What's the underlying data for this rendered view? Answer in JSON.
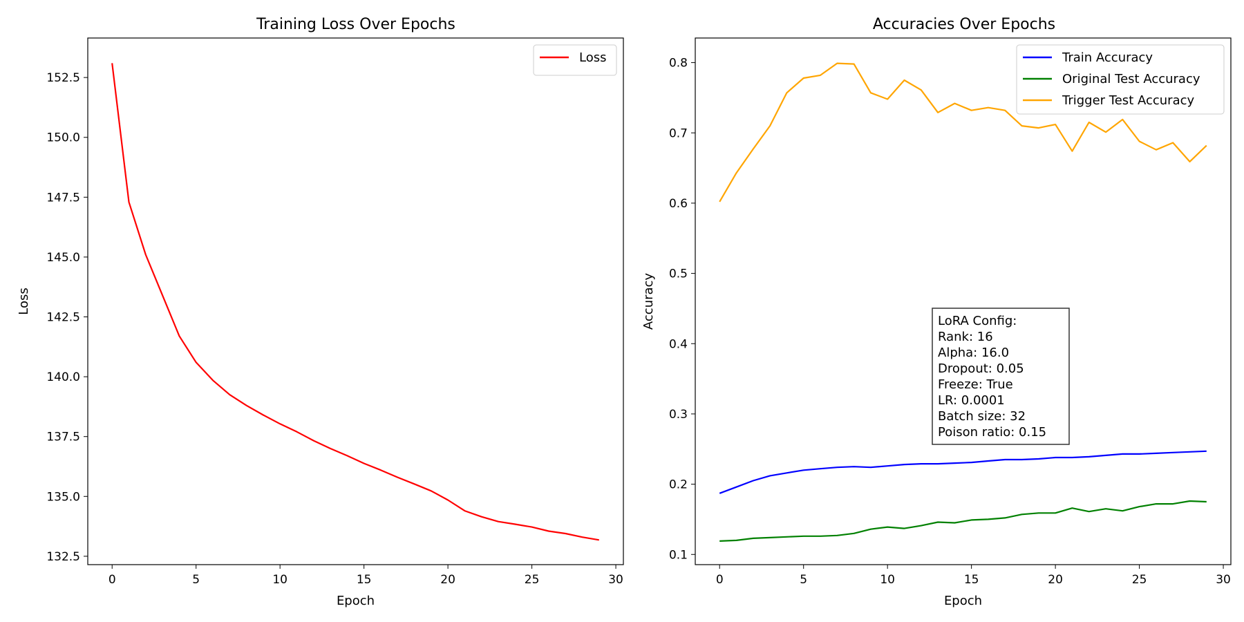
{
  "chart_data": [
    {
      "type": "line",
      "title": "Training Loss Over Epochs",
      "xlabel": "Epoch",
      "ylabel": "Loss",
      "xlim": [
        -1.45,
        30.45
      ],
      "ylim": [
        132.15,
        154.15
      ],
      "xticks": [
        0,
        5,
        10,
        15,
        20,
        25,
        30
      ],
      "yticks": [
        132.5,
        135.0,
        137.5,
        140.0,
        142.5,
        145.0,
        147.5,
        150.0,
        152.5
      ],
      "ytick_labels": [
        "132.5",
        "135.0",
        "137.5",
        "140.0",
        "142.5",
        "145.0",
        "147.5",
        "150.0",
        "152.5"
      ],
      "grid": false,
      "legend_position": "upper-right",
      "x": [
        0,
        1,
        2,
        3,
        4,
        5,
        6,
        7,
        8,
        9,
        10,
        11,
        12,
        13,
        14,
        15,
        16,
        17,
        18,
        19,
        20,
        21,
        22,
        23,
        24,
        25,
        26,
        27,
        28,
        29
      ],
      "series": [
        {
          "name": "Loss",
          "color": "#ff0000",
          "values": [
            153.1,
            147.3,
            145.1,
            143.4,
            141.7,
            140.6,
            139.85,
            139.25,
            138.8,
            138.4,
            138.03,
            137.7,
            137.33,
            137.0,
            136.7,
            136.38,
            136.1,
            135.8,
            135.52,
            135.23,
            134.85,
            134.4,
            134.15,
            133.95,
            133.84,
            133.72,
            133.55,
            133.45,
            133.3,
            133.18
          ]
        }
      ]
    },
    {
      "type": "line",
      "title": "Accuracies Over Epochs",
      "xlabel": "Epoch",
      "ylabel": "Accuracy",
      "xlim": [
        -1.45,
        30.45
      ],
      "ylim": [
        0.0855,
        0.835
      ],
      "xticks": [
        0,
        5,
        10,
        15,
        20,
        25,
        30
      ],
      "yticks": [
        0.1,
        0.2,
        0.3,
        0.4,
        0.5,
        0.6,
        0.7,
        0.8
      ],
      "ytick_labels": [
        "0.1",
        "0.2",
        "0.3",
        "0.4",
        "0.5",
        "0.6",
        "0.7",
        "0.8"
      ],
      "grid": false,
      "legend_position": "upper-right",
      "x": [
        0,
        1,
        2,
        3,
        4,
        5,
        6,
        7,
        8,
        9,
        10,
        11,
        12,
        13,
        14,
        15,
        16,
        17,
        18,
        19,
        20,
        21,
        22,
        23,
        24,
        25,
        26,
        27,
        28,
        29
      ],
      "series": [
        {
          "name": "Train Accuracy",
          "color": "#0000ff",
          "values": [
            0.187,
            0.196,
            0.205,
            0.212,
            0.216,
            0.22,
            0.222,
            0.224,
            0.225,
            0.224,
            0.226,
            0.228,
            0.229,
            0.229,
            0.23,
            0.231,
            0.233,
            0.235,
            0.235,
            0.236,
            0.238,
            0.238,
            0.239,
            0.241,
            0.243,
            0.243,
            0.244,
            0.245,
            0.246,
            0.247
          ]
        },
        {
          "name": "Original Test Accuracy",
          "color": "#008000",
          "values": [
            0.119,
            0.12,
            0.123,
            0.124,
            0.125,
            0.126,
            0.126,
            0.127,
            0.13,
            0.136,
            0.139,
            0.137,
            0.141,
            0.146,
            0.145,
            0.149,
            0.15,
            0.152,
            0.157,
            0.159,
            0.159,
            0.166,
            0.161,
            0.165,
            0.162,
            0.168,
            0.172,
            0.172,
            0.176,
            0.175
          ]
        },
        {
          "name": "Trigger Test Accuracy",
          "color": "#ffa500",
          "values": [
            0.602,
            0.643,
            0.677,
            0.71,
            0.757,
            0.778,
            0.782,
            0.799,
            0.798,
            0.757,
            0.748,
            0.775,
            0.761,
            0.729,
            0.742,
            0.732,
            0.736,
            0.732,
            0.71,
            0.707,
            0.712,
            0.674,
            0.715,
            0.701,
            0.719,
            0.688,
            0.676,
            0.686,
            0.659,
            0.682
          ]
        }
      ],
      "annotation": {
        "lines": [
          "LoRA Config:",
          "Rank: 16",
          "Alpha: 16.0",
          "Dropout: 0.05",
          "Freeze: True",
          "LR: 0.0001",
          "Batch size: 32",
          "Poison ratio: 0.15"
        ]
      }
    }
  ]
}
